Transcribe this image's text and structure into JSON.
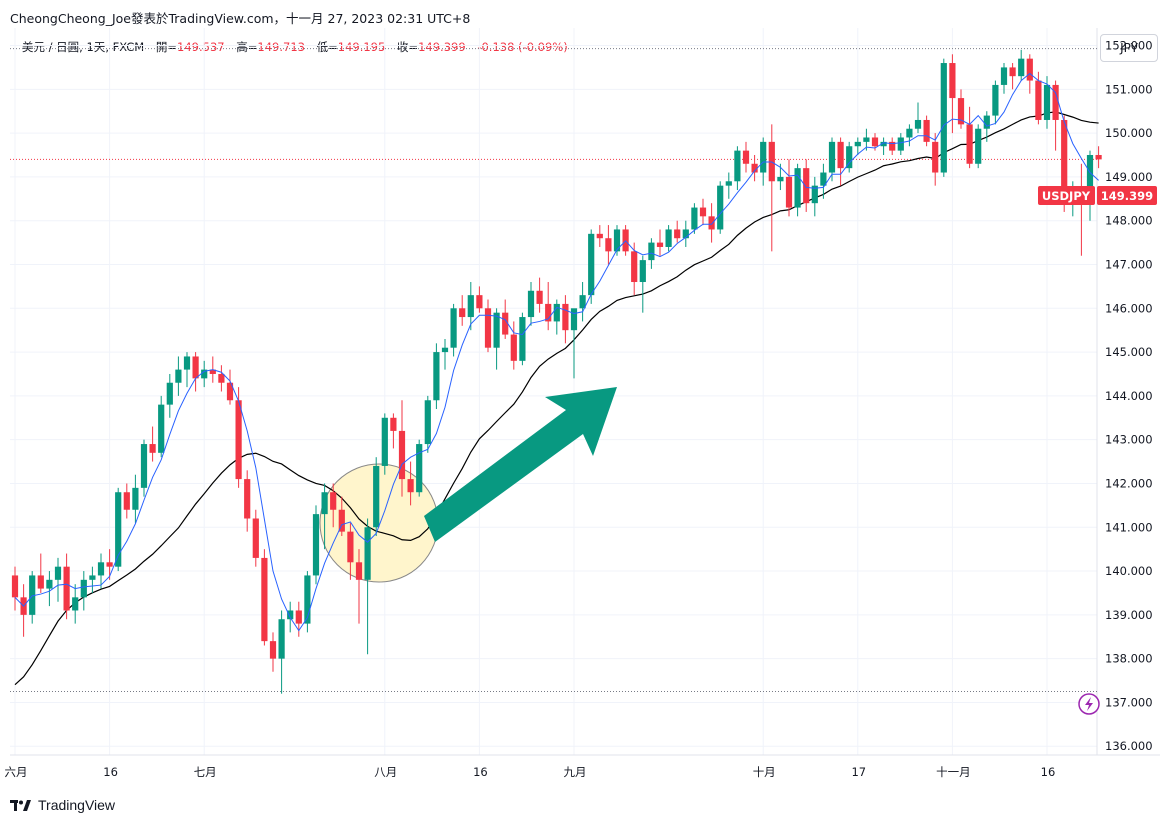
{
  "header": {
    "title": "CheongCheong_Joe發表於TradingView.com，十一月 27, 2023 02:31 UTC+8"
  },
  "legend": {
    "symbol": "美元 / 日圓, 1天, FXCM",
    "open_label": "開",
    "open": "149.537",
    "high_label": "高",
    "high": "149.713",
    "low_label": "低",
    "low": "149.195",
    "close_label": "收",
    "close": "149.399",
    "change": "-0.138 (-0.09%)"
  },
  "currency_button": "JPY",
  "footer": {
    "brand": "TradingView",
    "logo_icon": "tradingview-logo-icon"
  },
  "badge": {
    "symbol": "USDJPY",
    "price": "149.399"
  },
  "colors": {
    "up": "#089981",
    "down": "#f23645",
    "ma_fast": "#2962ff",
    "ma_slow": "#000000",
    "arrow": "#089981",
    "highlight": "#fff5cc",
    "price_line": "#f23645"
  },
  "icons": {
    "lightning": "lightning-icon"
  },
  "chart_data": {
    "type": "candlestick",
    "ylim": [
      135.8,
      152.4
    ],
    "y_ticks": [
      "152.000",
      "151.000",
      "150.000",
      "149.000",
      "148.000",
      "147.000",
      "146.000",
      "145.000",
      "144.000",
      "143.000",
      "142.000",
      "141.000",
      "140.000",
      "139.000",
      "138.000",
      "137.000",
      "136.000"
    ],
    "x_ticks": [
      {
        "label": "六月",
        "i": 0
      },
      {
        "label": "16",
        "i": 11
      },
      {
        "label": "七月",
        "i": 22
      },
      {
        "label": "八月",
        "i": 43
      },
      {
        "label": "16",
        "i": 54
      },
      {
        "label": "九月",
        "i": 65
      },
      {
        "label": "十月",
        "i": 87
      },
      {
        "label": "17",
        "i": 98
      },
      {
        "label": "十一月",
        "i": 109
      },
      {
        "label": "16",
        "i": 120
      }
    ],
    "reference_lines": [
      151.93,
      137.25
    ],
    "current_price": 149.399,
    "candles": [
      [
        139.9,
        140.1,
        139.1,
        139.4
      ],
      [
        139.4,
        139.7,
        138.5,
        139.0
      ],
      [
        139.0,
        140.0,
        138.8,
        139.9
      ],
      [
        139.9,
        140.4,
        139.5,
        139.6
      ],
      [
        139.6,
        140.0,
        139.2,
        139.8
      ],
      [
        139.8,
        140.3,
        139.3,
        140.1
      ],
      [
        140.1,
        140.4,
        138.9,
        139.1
      ],
      [
        139.1,
        139.7,
        138.8,
        139.4
      ],
      [
        139.4,
        140.0,
        139.1,
        139.8
      ],
      [
        139.8,
        140.1,
        139.5,
        139.9
      ],
      [
        139.9,
        140.4,
        139.6,
        140.2
      ],
      [
        140.2,
        140.5,
        139.8,
        140.1
      ],
      [
        140.1,
        141.9,
        140.0,
        141.8
      ],
      [
        141.8,
        142.0,
        141.2,
        141.4
      ],
      [
        141.4,
        142.2,
        141.1,
        141.9
      ],
      [
        141.9,
        143.0,
        141.7,
        142.9
      ],
      [
        142.9,
        143.3,
        142.5,
        142.7
      ],
      [
        142.7,
        144.0,
        142.6,
        143.8
      ],
      [
        143.8,
        144.5,
        143.5,
        144.3
      ],
      [
        144.3,
        144.9,
        144.0,
        144.6
      ],
      [
        144.6,
        145.0,
        144.2,
        144.9
      ],
      [
        144.9,
        145.0,
        144.1,
        144.4
      ],
      [
        144.4,
        144.8,
        144.2,
        144.6
      ],
      [
        144.6,
        144.9,
        144.3,
        144.5
      ],
      [
        144.5,
        144.7,
        144.1,
        144.3
      ],
      [
        144.3,
        144.6,
        143.8,
        143.9
      ],
      [
        143.9,
        144.2,
        141.9,
        142.1
      ],
      [
        142.1,
        142.3,
        140.9,
        141.2
      ],
      [
        141.2,
        141.4,
        140.1,
        140.3
      ],
      [
        140.3,
        140.5,
        138.3,
        138.4
      ],
      [
        138.4,
        138.6,
        137.7,
        138.0
      ],
      [
        138.0,
        139.1,
        137.2,
        138.9
      ],
      [
        138.9,
        139.3,
        138.6,
        139.1
      ],
      [
        139.1,
        139.3,
        138.5,
        138.8
      ],
      [
        138.8,
        140.0,
        138.6,
        139.9
      ],
      [
        139.9,
        141.5,
        139.7,
        141.3
      ],
      [
        141.3,
        142.0,
        140.5,
        141.8
      ],
      [
        141.8,
        142.0,
        141.0,
        141.4
      ],
      [
        141.4,
        141.7,
        140.8,
        140.9
      ],
      [
        140.9,
        141.1,
        139.8,
        140.2
      ],
      [
        140.2,
        140.5,
        138.8,
        139.8
      ],
      [
        139.8,
        141.2,
        138.1,
        141.0
      ],
      [
        141.0,
        142.6,
        140.8,
        142.4
      ],
      [
        142.4,
        143.6,
        142.2,
        143.5
      ],
      [
        143.5,
        143.6,
        142.8,
        143.2
      ],
      [
        143.2,
        143.9,
        141.7,
        142.1
      ],
      [
        142.1,
        142.5,
        141.5,
        141.8
      ],
      [
        141.8,
        143.0,
        141.7,
        142.9
      ],
      [
        142.9,
        144.0,
        142.7,
        143.9
      ],
      [
        143.9,
        145.2,
        143.7,
        145.0
      ],
      [
        145.0,
        145.3,
        144.6,
        145.1
      ],
      [
        145.1,
        146.1,
        144.9,
        146.0
      ],
      [
        146.0,
        146.3,
        145.6,
        145.8
      ],
      [
        145.8,
        146.6,
        145.5,
        146.3
      ],
      [
        146.3,
        146.5,
        145.9,
        146.0
      ],
      [
        146.0,
        146.2,
        145.0,
        145.1
      ],
      [
        145.1,
        146.0,
        144.6,
        145.9
      ],
      [
        145.9,
        146.2,
        145.3,
        145.4
      ],
      [
        145.4,
        145.7,
        144.6,
        144.8
      ],
      [
        144.8,
        145.9,
        144.7,
        145.8
      ],
      [
        145.8,
        146.6,
        145.6,
        146.4
      ],
      [
        146.4,
        146.7,
        145.9,
        146.1
      ],
      [
        146.1,
        146.6,
        145.5,
        145.7
      ],
      [
        145.7,
        146.2,
        145.4,
        146.1
      ],
      [
        146.1,
        146.3,
        145.2,
        145.5
      ],
      [
        145.5,
        145.9,
        144.4,
        146.0
      ],
      [
        146.0,
        146.6,
        145.7,
        146.3
      ],
      [
        146.3,
        147.8,
        146.1,
        147.7
      ],
      [
        147.7,
        147.9,
        147.4,
        147.6
      ],
      [
        147.6,
        147.9,
        147.0,
        147.3
      ],
      [
        147.3,
        147.9,
        147.2,
        147.8
      ],
      [
        147.8,
        147.9,
        147.2,
        147.3
      ],
      [
        147.3,
        147.5,
        146.3,
        146.6
      ],
      [
        146.6,
        147.2,
        145.9,
        147.1
      ],
      [
        147.1,
        147.6,
        146.9,
        147.5
      ],
      [
        147.5,
        147.8,
        147.2,
        147.4
      ],
      [
        147.4,
        147.9,
        147.3,
        147.8
      ],
      [
        147.8,
        148.0,
        147.5,
        147.6
      ],
      [
        147.6,
        148.0,
        147.4,
        147.8
      ],
      [
        147.8,
        148.4,
        147.7,
        148.3
      ],
      [
        148.3,
        148.5,
        147.9,
        148.1
      ],
      [
        148.1,
        148.4,
        147.5,
        147.8
      ],
      [
        147.8,
        148.9,
        147.7,
        148.8
      ],
      [
        148.8,
        149.1,
        148.5,
        148.9
      ],
      [
        148.9,
        149.7,
        148.7,
        149.6
      ],
      [
        149.6,
        149.8,
        149.1,
        149.3
      ],
      [
        149.3,
        149.5,
        148.9,
        149.1
      ],
      [
        149.1,
        149.9,
        148.8,
        149.8
      ],
      [
        149.8,
        150.2,
        147.3,
        148.9
      ],
      [
        148.9,
        149.3,
        148.7,
        149.0
      ],
      [
        149.0,
        149.4,
        148.1,
        148.3
      ],
      [
        148.3,
        149.3,
        148.1,
        149.2
      ],
      [
        149.2,
        149.4,
        148.2,
        148.4
      ],
      [
        148.4,
        149.0,
        148.1,
        148.8
      ],
      [
        148.8,
        149.3,
        148.5,
        149.1
      ],
      [
        149.1,
        149.9,
        148.9,
        149.8
      ],
      [
        149.8,
        149.9,
        148.8,
        149.2
      ],
      [
        149.2,
        149.8,
        149.1,
        149.7
      ],
      [
        149.7,
        149.9,
        149.5,
        149.8
      ],
      [
        149.8,
        150.1,
        149.6,
        149.9
      ],
      [
        149.9,
        150.0,
        149.6,
        149.7
      ],
      [
        149.7,
        149.9,
        149.5,
        149.8
      ],
      [
        149.8,
        149.9,
        149.5,
        149.6
      ],
      [
        149.6,
        150.0,
        149.5,
        149.9
      ],
      [
        149.9,
        150.2,
        149.7,
        150.1
      ],
      [
        150.1,
        150.7,
        150.0,
        150.3
      ],
      [
        150.3,
        150.4,
        149.7,
        149.8
      ],
      [
        149.8,
        150.0,
        148.8,
        149.1
      ],
      [
        149.1,
        151.7,
        149.0,
        151.6
      ],
      [
        151.6,
        151.8,
        150.0,
        150.8
      ],
      [
        150.8,
        151.0,
        150.1,
        150.2
      ],
      [
        150.2,
        150.6,
        149.2,
        149.3
      ],
      [
        149.3,
        150.2,
        149.2,
        150.1
      ],
      [
        150.1,
        150.5,
        149.8,
        150.4
      ],
      [
        150.4,
        151.2,
        150.2,
        151.1
      ],
      [
        151.1,
        151.6,
        150.9,
        151.5
      ],
      [
        151.5,
        151.6,
        151.0,
        151.3
      ],
      [
        151.3,
        151.9,
        151.2,
        151.7
      ],
      [
        151.7,
        151.8,
        150.9,
        151.2
      ],
      [
        151.2,
        151.4,
        150.2,
        150.3
      ],
      [
        150.3,
        151.3,
        150.1,
        151.1
      ],
      [
        151.1,
        151.2,
        149.6,
        150.3
      ],
      [
        150.3,
        150.4,
        148.2,
        148.4
      ],
      [
        148.4,
        148.9,
        148.1,
        148.7
      ],
      [
        148.7,
        149.3,
        147.2,
        148.6
      ],
      [
        148.6,
        149.6,
        148.0,
        149.5
      ],
      [
        149.5,
        149.7,
        149.2,
        149.4
      ]
    ],
    "ma_fast_period": 5,
    "ma_slow_period": 20,
    "ma_slow_start": 137.3,
    "annotation": {
      "type": "arrow",
      "direction": "up-right",
      "highlight": "circle"
    }
  }
}
